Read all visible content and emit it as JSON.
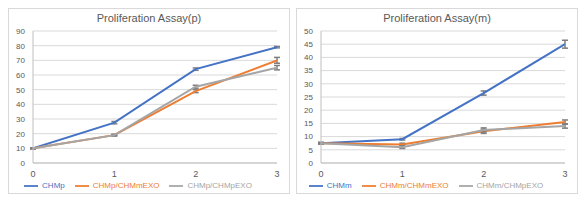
{
  "chart_data": [
    {
      "type": "line",
      "title": "Proliferation Assay(p)",
      "x": [
        0,
        1,
        2,
        3
      ],
      "xlim": [
        0,
        3
      ],
      "xticks": [
        0,
        1,
        2,
        3
      ],
      "ylim": [
        0,
        90
      ],
      "yticks": [
        0,
        10,
        20,
        30,
        40,
        50,
        60,
        70,
        80,
        90
      ],
      "grid": true,
      "legend": "bottom",
      "series": [
        {
          "name": "CHMp",
          "color": "#4472c4",
          "values": [
            10,
            27.5,
            64,
            79
          ],
          "errors": [
            0.3,
            0.8,
            0.8,
            0.5
          ]
        },
        {
          "name": "CHMp/CHMmEXO",
          "color": "#ed7d31",
          "values": [
            10,
            19,
            49,
            70
          ],
          "errors": [
            0.3,
            0.5,
            1,
            2
          ]
        },
        {
          "name": "CHMp/CHMpEXO",
          "color": "#a5a5a5",
          "values": [
            10,
            19,
            52,
            65
          ],
          "errors": [
            0.3,
            0.5,
            1,
            1.5
          ]
        }
      ]
    },
    {
      "type": "line",
      "title": "Proliferation Assay(m)",
      "x": [
        0,
        1,
        2,
        3
      ],
      "xlim": [
        0,
        3
      ],
      "xticks": [
        0,
        1,
        2,
        3
      ],
      "ylim": [
        0,
        50
      ],
      "yticks": [
        0,
        5,
        10,
        15,
        20,
        25,
        30,
        35,
        40,
        45,
        50
      ],
      "grid": true,
      "legend": "bottom",
      "series": [
        {
          "name": "CHMm",
          "color": "#4472c4",
          "values": [
            7.5,
            9,
            26.5,
            45
          ],
          "errors": [
            0.2,
            0.3,
            0.8,
            1.5
          ]
        },
        {
          "name": "CHMm/CHMmEXO",
          "color": "#ed7d31",
          "values": [
            7.5,
            7,
            12,
            15.5
          ],
          "errors": [
            0.3,
            0.5,
            0.8,
            0.8
          ]
        },
        {
          "name": "CHMm/CHMpEXO",
          "color": "#a5a5a5",
          "values": [
            7.5,
            6,
            12.5,
            14
          ],
          "errors": [
            0.3,
            0.5,
            0.8,
            0.8
          ]
        }
      ]
    }
  ]
}
